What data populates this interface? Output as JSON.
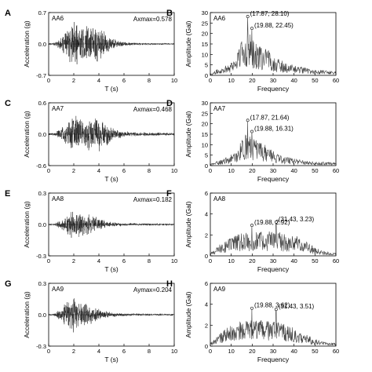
{
  "chart_data": [
    {
      "type": "line",
      "panel": "A",
      "label": "AA6",
      "annotation": "Axmax=0.578",
      "xlabel": "T (s)",
      "ylabel": "Acceleration (g)",
      "xlim": [
        0,
        10
      ],
      "ylim": [
        -0.7,
        0.7
      ],
      "xticks": [
        0,
        2,
        4,
        6,
        8,
        10
      ],
      "yticks": [
        -0.7,
        0.0,
        0.7
      ],
      "ytick_labels": [
        "-0.7",
        "0.0",
        "0.7"
      ],
      "envelope": [
        [
          0.4,
          0.03
        ],
        [
          1.0,
          0.15
        ],
        [
          1.6,
          0.4
        ],
        [
          2.0,
          0.55
        ],
        [
          2.5,
          0.45
        ],
        [
          3.0,
          0.5
        ],
        [
          3.5,
          0.4
        ],
        [
          3.9,
          0.5
        ],
        [
          4.4,
          0.35
        ],
        [
          5.0,
          0.15
        ],
        [
          5.8,
          0.06
        ],
        [
          7.0,
          0.03
        ],
        [
          10.0,
          0.02
        ]
      ]
    },
    {
      "type": "line",
      "panel": "B",
      "label": "AA6",
      "xlabel": "Frequency",
      "ylabel": "Amplitude (Gal)",
      "xlim": [
        0,
        60
      ],
      "ylim": [
        0,
        30
      ],
      "xticks": [
        0,
        10,
        20,
        30,
        40,
        50,
        60
      ],
      "yticks": [
        0,
        5,
        10,
        15,
        20,
        25,
        30
      ],
      "peaks": [
        {
          "x": 17.87,
          "y": 28.1,
          "label": "(17.87, 28.10)"
        },
        {
          "x": 19.88,
          "y": 22.45,
          "label": "(19.88, 22.45)"
        }
      ],
      "envelope": [
        [
          0,
          0.5
        ],
        [
          3,
          2
        ],
        [
          8,
          4
        ],
        [
          12,
          7
        ],
        [
          15,
          13
        ],
        [
          18,
          16
        ],
        [
          20,
          13
        ],
        [
          24,
          10
        ],
        [
          28,
          9
        ],
        [
          32,
          6
        ],
        [
          38,
          4
        ],
        [
          44,
          3
        ],
        [
          50,
          2
        ],
        [
          60,
          1.5
        ]
      ]
    },
    {
      "type": "line",
      "panel": "C",
      "label": "AA7",
      "annotation": "Axmax=0.468",
      "xlabel": "T (s)",
      "ylabel": "Acceleration (g)",
      "xlim": [
        0,
        10
      ],
      "ylim": [
        -0.6,
        0.6
      ],
      "xticks": [
        0,
        2,
        4,
        6,
        8,
        10
      ],
      "yticks": [
        -0.6,
        0.0,
        0.6
      ],
      "ytick_labels": [
        "-0.6",
        "0.0",
        "0.6"
      ],
      "envelope": [
        [
          0.4,
          0.03
        ],
        [
          1.0,
          0.12
        ],
        [
          1.6,
          0.3
        ],
        [
          2.0,
          0.4
        ],
        [
          2.5,
          0.3
        ],
        [
          3.0,
          0.35
        ],
        [
          3.5,
          0.3
        ],
        [
          3.9,
          0.4
        ],
        [
          4.4,
          0.3
        ],
        [
          5.0,
          0.15
        ],
        [
          5.8,
          0.08
        ],
        [
          7.0,
          0.04
        ],
        [
          10.0,
          0.03
        ]
      ]
    },
    {
      "type": "line",
      "panel": "D",
      "label": "AA7",
      "xlabel": "Frequency",
      "ylabel": "Amplitude (Gal)",
      "xlim": [
        0,
        60
      ],
      "ylim": [
        0,
        30
      ],
      "xticks": [
        0,
        10,
        20,
        30,
        40,
        50,
        60
      ],
      "yticks": [
        0,
        5,
        10,
        15,
        20,
        25,
        30
      ],
      "peaks": [
        {
          "x": 17.87,
          "y": 21.64,
          "label": "(17.87, 21.64)"
        },
        {
          "x": 19.88,
          "y": 16.31,
          "label": "(19.88, 16.31)"
        }
      ],
      "envelope": [
        [
          0,
          0.5
        ],
        [
          3,
          1.5
        ],
        [
          8,
          3
        ],
        [
          12,
          5
        ],
        [
          15,
          9
        ],
        [
          18,
          12
        ],
        [
          20,
          10
        ],
        [
          24,
          8
        ],
        [
          28,
          7
        ],
        [
          32,
          4
        ],
        [
          38,
          3
        ],
        [
          44,
          2
        ],
        [
          50,
          1.5
        ],
        [
          60,
          1
        ]
      ]
    },
    {
      "type": "line",
      "panel": "E",
      "label": "AA8",
      "annotation": "Axmax=0.182",
      "xlabel": "T (s)",
      "ylabel": "Acceleration (g)",
      "xlim": [
        0,
        10
      ],
      "ylim": [
        -0.3,
        0.3
      ],
      "xticks": [
        0,
        2,
        4,
        6,
        8,
        10
      ],
      "yticks": [
        -0.3,
        0.0,
        0.3
      ],
      "ytick_labels": [
        "-0.3",
        "0.0",
        "0.3"
      ],
      "envelope": [
        [
          0.4,
          0.01
        ],
        [
          1.0,
          0.05
        ],
        [
          1.5,
          0.12
        ],
        [
          1.9,
          0.16
        ],
        [
          2.3,
          0.14
        ],
        [
          2.8,
          0.12
        ],
        [
          3.3,
          0.1
        ],
        [
          4.0,
          0.06
        ],
        [
          4.8,
          0.03
        ],
        [
          6.0,
          0.015
        ],
        [
          10.0,
          0.01
        ]
      ]
    },
    {
      "type": "line",
      "panel": "F",
      "label": "AA8",
      "xlabel": "Frequency",
      "ylabel": "Amplitude (Gal)",
      "xlim": [
        0,
        60
      ],
      "ylim": [
        0,
        6
      ],
      "xticks": [
        0,
        10,
        20,
        30,
        40,
        50,
        60
      ],
      "yticks": [
        0,
        2,
        4,
        6
      ],
      "peaks": [
        {
          "x": 19.88,
          "y": 2.92,
          "label": "(19.88, 2.92)"
        },
        {
          "x": 31.43,
          "y": 3.23,
          "label": "(31.43, 3.23)"
        }
      ],
      "envelope": [
        [
          0,
          0.2
        ],
        [
          3,
          0.6
        ],
        [
          6,
          1.0
        ],
        [
          10,
          1.4
        ],
        [
          15,
          1.6
        ],
        [
          20,
          1.7
        ],
        [
          25,
          1.7
        ],
        [
          30,
          1.8
        ],
        [
          35,
          1.6
        ],
        [
          40,
          1.5
        ],
        [
          45,
          1.2
        ],
        [
          50,
          0.6
        ],
        [
          55,
          0.3
        ],
        [
          60,
          0.2
        ]
      ]
    },
    {
      "type": "line",
      "panel": "G",
      "label": "AA9",
      "annotation": "Aymax=0.204",
      "xlabel": "T (s)",
      "ylabel": "Acceleration (g)",
      "xlim": [
        0,
        10
      ],
      "ylim": [
        -0.3,
        0.3
      ],
      "xticks": [
        0,
        2,
        4,
        6,
        8,
        10
      ],
      "yticks": [
        -0.3,
        0.0,
        0.3
      ],
      "ytick_labels": [
        "-0.3",
        "0.0",
        "0.3"
      ],
      "envelope": [
        [
          0.4,
          0.01
        ],
        [
          1.0,
          0.06
        ],
        [
          1.5,
          0.14
        ],
        [
          1.9,
          0.19
        ],
        [
          2.3,
          0.15
        ],
        [
          2.8,
          0.12
        ],
        [
          3.3,
          0.1
        ],
        [
          4.0,
          0.06
        ],
        [
          4.8,
          0.03
        ],
        [
          6.0,
          0.015
        ],
        [
          10.0,
          0.01
        ]
      ]
    },
    {
      "type": "line",
      "panel": "H",
      "label": "AA9",
      "xlabel": "Frequency",
      "ylabel": "Amplitude (Gal)",
      "xlim": [
        0,
        60
      ],
      "ylim": [
        0,
        6
      ],
      "xticks": [
        0,
        10,
        20,
        30,
        40,
        50,
        60
      ],
      "yticks": [
        0,
        2,
        4,
        6
      ],
      "peaks": [
        {
          "x": 19.88,
          "y": 3.62,
          "label": "(19.88, 3.62)"
        },
        {
          "x": 31.43,
          "y": 3.51,
          "label": "(31.43, 3.51)"
        }
      ],
      "envelope": [
        [
          0,
          0.2
        ],
        [
          3,
          0.7
        ],
        [
          6,
          1.1
        ],
        [
          10,
          1.5
        ],
        [
          15,
          1.8
        ],
        [
          20,
          1.9
        ],
        [
          25,
          1.8
        ],
        [
          30,
          1.8
        ],
        [
          35,
          1.6
        ],
        [
          40,
          1.3
        ],
        [
          45,
          0.9
        ],
        [
          50,
          0.5
        ],
        [
          55,
          0.3
        ],
        [
          60,
          0.2
        ]
      ]
    }
  ]
}
